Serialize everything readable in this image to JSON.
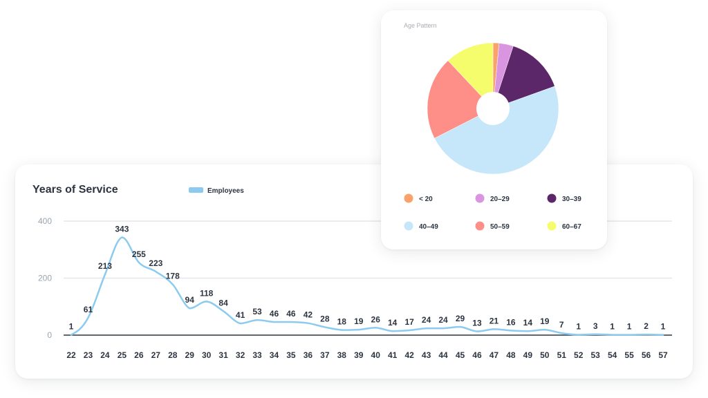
{
  "chart_data": [
    {
      "type": "line",
      "title": "Years of Service",
      "legend": {
        "placement": "top"
      },
      "series": [
        {
          "name": "Employees",
          "color": "#8ccbef",
          "values": [
            1,
            61,
            213,
            343,
            255,
            223,
            178,
            94,
            118,
            84,
            41,
            53,
            46,
            46,
            42,
            28,
            18,
            19,
            26,
            14,
            17,
            24,
            24,
            29,
            13,
            21,
            16,
            14,
            19,
            7,
            1,
            3,
            1,
            1,
            2,
            1
          ]
        }
      ],
      "x": [
        "22",
        "23",
        "24",
        "25",
        "26",
        "27",
        "28",
        "29",
        "30",
        "31",
        "32",
        "33",
        "34",
        "35",
        "36",
        "37",
        "38",
        "39",
        "40",
        "41",
        "42",
        "43",
        "44",
        "45",
        "46",
        "47",
        "48",
        "49",
        "50",
        "51",
        "52",
        "53",
        "54",
        "55",
        "56",
        "57"
      ],
      "ylim": [
        0,
        400
      ],
      "yticks": [
        0,
        200,
        400
      ],
      "grid": true,
      "xlabel": "",
      "ylabel": ""
    },
    {
      "type": "pie",
      "title": "Age Pattern",
      "donut": true,
      "legend": {
        "placement": "bottom"
      },
      "categories": [
        "< 20",
        "20–29",
        "30–39",
        "40–49",
        "50–59",
        "60–67"
      ],
      "values": [
        1.5,
        3.5,
        14.5,
        48,
        20.5,
        12
      ],
      "colors": [
        "#f9a26c",
        "#d995e0",
        "#5b2769",
        "#c6e6fa",
        "#fe8e88",
        "#f6fd6c"
      ]
    }
  ]
}
